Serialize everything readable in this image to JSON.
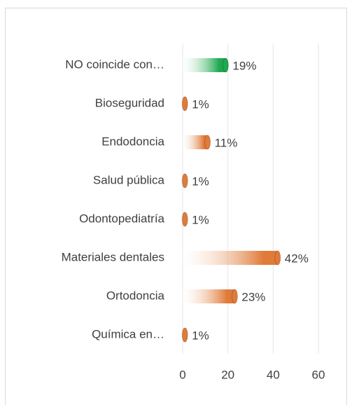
{
  "chart_data": {
    "type": "bar",
    "orientation": "horizontal",
    "categories": [
      "NO coincide con…",
      "Bioseguridad",
      "Endodoncia",
      "Salud pública",
      "Odontopediatría",
      "Materiales dentales",
      "Ortodoncia",
      "Química en…"
    ],
    "values": [
      19,
      1,
      11,
      1,
      1,
      42,
      23,
      1
    ],
    "value_labels": [
      "19%",
      "1%",
      "11%",
      "1%",
      "1%",
      "42%",
      "23%",
      "1%"
    ],
    "colors": [
      "#1fa84f",
      "#e07b39",
      "#e07b39",
      "#e07b39",
      "#e07b39",
      "#e07b39",
      "#e07b39",
      "#e07b39"
    ],
    "xlim": [
      0,
      60
    ],
    "xticks": [
      0,
      20,
      40,
      60
    ],
    "grid": true
  }
}
